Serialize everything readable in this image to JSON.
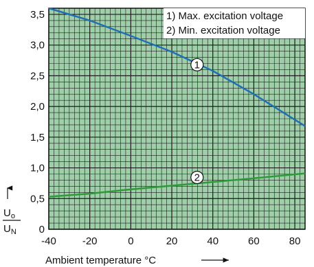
{
  "chart_data": {
    "type": "line",
    "xlabel": "Ambient temperature °C",
    "ylabel_num": "U",
    "ylabel_num_sub": "o",
    "ylabel_den": "U",
    "ylabel_den_sub": "N",
    "xlim": [
      -40,
      85
    ],
    "ylim": [
      0,
      3.6
    ],
    "grid": true,
    "xticks": [
      -40,
      -20,
      0,
      20,
      40,
      60,
      80
    ],
    "xtick_labels": [
      "-40",
      "-20",
      "0",
      "20",
      "40",
      "60",
      "80"
    ],
    "yticks": [
      0,
      0.5,
      1.0,
      1.5,
      2.0,
      2.5,
      3.0,
      3.5
    ],
    "ytick_labels": [
      "0",
      "0,5",
      "1,0",
      "1,5",
      "2,0",
      "2,5",
      "3,0",
      "3,5"
    ],
    "legend_position": "top-right",
    "legend_entries": [
      "1) Max. excitation voltage",
      "2) Min. excitation voltage"
    ],
    "series": [
      {
        "marker": "1",
        "color": "#1f6fb4",
        "x": [
          -40,
          -20,
          0,
          20,
          40,
          60,
          85
        ],
        "y": [
          3.6,
          3.4,
          3.15,
          2.89,
          2.58,
          2.2,
          1.68
        ]
      },
      {
        "marker": "2",
        "color": "#2e9a3a",
        "x": [
          -40,
          -20,
          0,
          20,
          40,
          60,
          85
        ],
        "y": [
          0.53,
          0.58,
          0.65,
          0.71,
          0.77,
          0.83,
          0.91
        ]
      }
    ]
  },
  "colors": {
    "plot_background": "#9fcfa9",
    "grid": "#1a1a1a"
  }
}
